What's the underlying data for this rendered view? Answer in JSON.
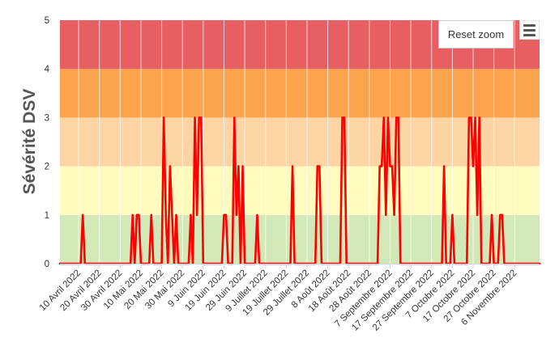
{
  "chart_data": {
    "type": "line",
    "title": "",
    "xlabel": "",
    "ylabel": "Sévérité DSV",
    "ylim": [
      0,
      5
    ],
    "xlim": [
      "2022-04-01",
      "2022-11-18"
    ],
    "y_ticks": [
      "0",
      "1",
      "2",
      "3",
      "4",
      "5"
    ],
    "x_ticks": [
      {
        "date": "2022-04-10",
        "label": "10 Avril 2022"
      },
      {
        "date": "2022-04-20",
        "label": "20 Avril 2022"
      },
      {
        "date": "2022-04-30",
        "label": "30 Avril 2022"
      },
      {
        "date": "2022-05-10",
        "label": "10 Mai 2022"
      },
      {
        "date": "2022-05-20",
        "label": "20 Mai 2022"
      },
      {
        "date": "2022-05-30",
        "label": "30 Mai 2022"
      },
      {
        "date": "2022-06-09",
        "label": "9 Juin 2022"
      },
      {
        "date": "2022-06-19",
        "label": "19 Juin 2022"
      },
      {
        "date": "2022-06-29",
        "label": "29 Juin 2022"
      },
      {
        "date": "2022-07-09",
        "label": "9 Juillet 2022"
      },
      {
        "date": "2022-07-19",
        "label": "19 Juillet 2022"
      },
      {
        "date": "2022-07-29",
        "label": "29 Juillet 2022"
      },
      {
        "date": "2022-08-08",
        "label": "8 Août 2022"
      },
      {
        "date": "2022-08-18",
        "label": "18 Août 2022"
      },
      {
        "date": "2022-08-28",
        "label": "28 Août 2022"
      },
      {
        "date": "2022-09-07",
        "label": "7 Septembre 2022"
      },
      {
        "date": "2022-09-17",
        "label": "17 Septembre 2022"
      },
      {
        "date": "2022-09-27",
        "label": "27 Septembre 2022"
      },
      {
        "date": "2022-10-07",
        "label": "7 Octobre 2022"
      },
      {
        "date": "2022-10-17",
        "label": "17 Octobre 2022"
      },
      {
        "date": "2022-10-27",
        "label": "27 Octobre 2022"
      },
      {
        "date": "2022-11-06",
        "label": "6 Novembre 2022"
      }
    ],
    "bands": [
      {
        "from": 0,
        "to": 1,
        "color": "#d3e8b8"
      },
      {
        "from": 1,
        "to": 2,
        "color": "#fffbbf"
      },
      {
        "from": 2,
        "to": 3,
        "color": "#fdd4a4"
      },
      {
        "from": 3,
        "to": 4,
        "color": "#fca34e"
      },
      {
        "from": 4,
        "to": 5,
        "color": "#e85f63"
      }
    ],
    "grid": true,
    "series": [
      {
        "line_color": "#ff0000",
        "points": [
          [
            "2022-04-01",
            0
          ],
          [
            "2022-04-11",
            0
          ],
          [
            "2022-04-12",
            1
          ],
          [
            "2022-04-13",
            0
          ],
          [
            "2022-05-05",
            0
          ],
          [
            "2022-05-06",
            1
          ],
          [
            "2022-05-07",
            0
          ],
          [
            "2022-05-08",
            1
          ],
          [
            "2022-05-09",
            1
          ],
          [
            "2022-05-10",
            0
          ],
          [
            "2022-05-14",
            0
          ],
          [
            "2022-05-15",
            1
          ],
          [
            "2022-05-16",
            0
          ],
          [
            "2022-05-20",
            0
          ],
          [
            "2022-05-21",
            3
          ],
          [
            "2022-05-22",
            1
          ],
          [
            "2022-05-23",
            0
          ],
          [
            "2022-05-24",
            2
          ],
          [
            "2022-05-25",
            1
          ],
          [
            "2022-05-26",
            0
          ],
          [
            "2022-05-27",
            1
          ],
          [
            "2022-05-28",
            0
          ],
          [
            "2022-06-02",
            0
          ],
          [
            "2022-06-03",
            1
          ],
          [
            "2022-06-04",
            0
          ],
          [
            "2022-06-05",
            3
          ],
          [
            "2022-06-06",
            1
          ],
          [
            "2022-06-07",
            3
          ],
          [
            "2022-06-08",
            3
          ],
          [
            "2022-06-09",
            0
          ],
          [
            "2022-06-18",
            0
          ],
          [
            "2022-06-19",
            1
          ],
          [
            "2022-06-20",
            1
          ],
          [
            "2022-06-21",
            0
          ],
          [
            "2022-06-23",
            0
          ],
          [
            "2022-06-24",
            3
          ],
          [
            "2022-06-25",
            1
          ],
          [
            "2022-06-26",
            2
          ],
          [
            "2022-06-27",
            0
          ],
          [
            "2022-06-28",
            2
          ],
          [
            "2022-06-29",
            0
          ],
          [
            "2022-07-04",
            0
          ],
          [
            "2022-07-05",
            1
          ],
          [
            "2022-07-06",
            0
          ],
          [
            "2022-07-21",
            0
          ],
          [
            "2022-07-22",
            2
          ],
          [
            "2022-07-23",
            0
          ],
          [
            "2022-08-02",
            0
          ],
          [
            "2022-08-03",
            2
          ],
          [
            "2022-08-04",
            2
          ],
          [
            "2022-08-05",
            0
          ],
          [
            "2022-08-14",
            0
          ],
          [
            "2022-08-15",
            3
          ],
          [
            "2022-08-16",
            3
          ],
          [
            "2022-08-17",
            0
          ],
          [
            "2022-09-01",
            0
          ],
          [
            "2022-09-02",
            2
          ],
          [
            "2022-09-03",
            2
          ],
          [
            "2022-09-04",
            3
          ],
          [
            "2022-09-05",
            1
          ],
          [
            "2022-09-06",
            3
          ],
          [
            "2022-09-07",
            2
          ],
          [
            "2022-09-08",
            2
          ],
          [
            "2022-09-09",
            1
          ],
          [
            "2022-09-10",
            3
          ],
          [
            "2022-09-11",
            3
          ],
          [
            "2022-09-12",
            0
          ],
          [
            "2022-10-02",
            0
          ],
          [
            "2022-10-03",
            2
          ],
          [
            "2022-10-04",
            0
          ],
          [
            "2022-10-06",
            0
          ],
          [
            "2022-10-07",
            1
          ],
          [
            "2022-10-08",
            0
          ],
          [
            "2022-10-14",
            0
          ],
          [
            "2022-10-15",
            3
          ],
          [
            "2022-10-16",
            3
          ],
          [
            "2022-10-17",
            2
          ],
          [
            "2022-10-18",
            3
          ],
          [
            "2022-10-19",
            1
          ],
          [
            "2022-10-20",
            3
          ],
          [
            "2022-10-21",
            0
          ],
          [
            "2022-10-25",
            0
          ],
          [
            "2022-10-26",
            1
          ],
          [
            "2022-10-27",
            0
          ],
          [
            "2022-10-29",
            0
          ],
          [
            "2022-10-30",
            1
          ],
          [
            "2022-10-31",
            1
          ],
          [
            "2022-11-01",
            0
          ],
          [
            "2022-11-18",
            0
          ]
        ]
      }
    ]
  },
  "ui": {
    "reset_zoom_label": "Reset zoom",
    "menu_icon": "hamburger-menu-icon"
  }
}
